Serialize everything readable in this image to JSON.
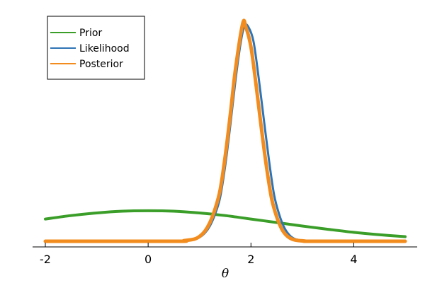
{
  "chart_data": {
    "type": "line",
    "title": "",
    "xlabel": "θ",
    "ylabel": "",
    "xlim": [
      -2,
      5
    ],
    "ylim": [
      0,
      1.05
    ],
    "xticks": [
      -2,
      0,
      2,
      4
    ],
    "xtick_labels": [
      "-2",
      "0",
      "2",
      "4"
    ],
    "grid": false,
    "legend_position": "top-left",
    "series": [
      {
        "name": "Prior",
        "color": "#3a9e29",
        "x": [
          -2.0,
          -1.5,
          -1.0,
          -0.5,
          0.0,
          0.5,
          1.0,
          1.5,
          2.0,
          2.5,
          3.0,
          3.5,
          4.0,
          4.5,
          5.0
        ],
        "y": [
          0.102,
          0.118,
          0.13,
          0.138,
          0.14,
          0.138,
          0.13,
          0.118,
          0.102,
          0.086,
          0.07,
          0.055,
          0.041,
          0.03,
          0.021
        ]
      },
      {
        "name": "Likelihood",
        "color": "#2f74b5",
        "x": [
          -2.0,
          0.5,
          0.7,
          0.9,
          1.0,
          1.1,
          1.2,
          1.3,
          1.4,
          1.5,
          1.6,
          1.7,
          1.8,
          1.875,
          1.95,
          2.05,
          2.15,
          2.25,
          2.35,
          2.45,
          2.55,
          2.65,
          2.75,
          2.85,
          3.0,
          3.2,
          5.0
        ],
        "y": [
          0.0,
          0.0,
          0.002,
          0.008,
          0.018,
          0.037,
          0.07,
          0.123,
          0.201,
          0.348,
          0.536,
          0.741,
          0.912,
          0.99,
          0.985,
          0.918,
          0.751,
          0.561,
          0.374,
          0.214,
          0.123,
          0.062,
          0.028,
          0.011,
          0.003,
          0.0,
          0.0
        ]
      },
      {
        "name": "Posterior",
        "color": "#f28c1e",
        "x": [
          -2.0,
          0.5,
          0.7,
          0.9,
          1.0,
          1.1,
          1.2,
          1.3,
          1.4,
          1.5,
          1.6,
          1.7,
          1.84,
          1.9,
          2.0,
          2.1,
          2.2,
          2.3,
          2.4,
          2.5,
          2.6,
          2.7,
          2.8,
          2.9,
          3.05,
          3.2,
          5.0
        ],
        "y": [
          0.0,
          0.0,
          0.003,
          0.01,
          0.022,
          0.045,
          0.085,
          0.147,
          0.235,
          0.392,
          0.585,
          0.792,
          1.0,
          0.985,
          0.893,
          0.718,
          0.525,
          0.346,
          0.199,
          0.113,
          0.056,
          0.025,
          0.01,
          0.004,
          0.001,
          0.0,
          0.0
        ]
      }
    ]
  }
}
